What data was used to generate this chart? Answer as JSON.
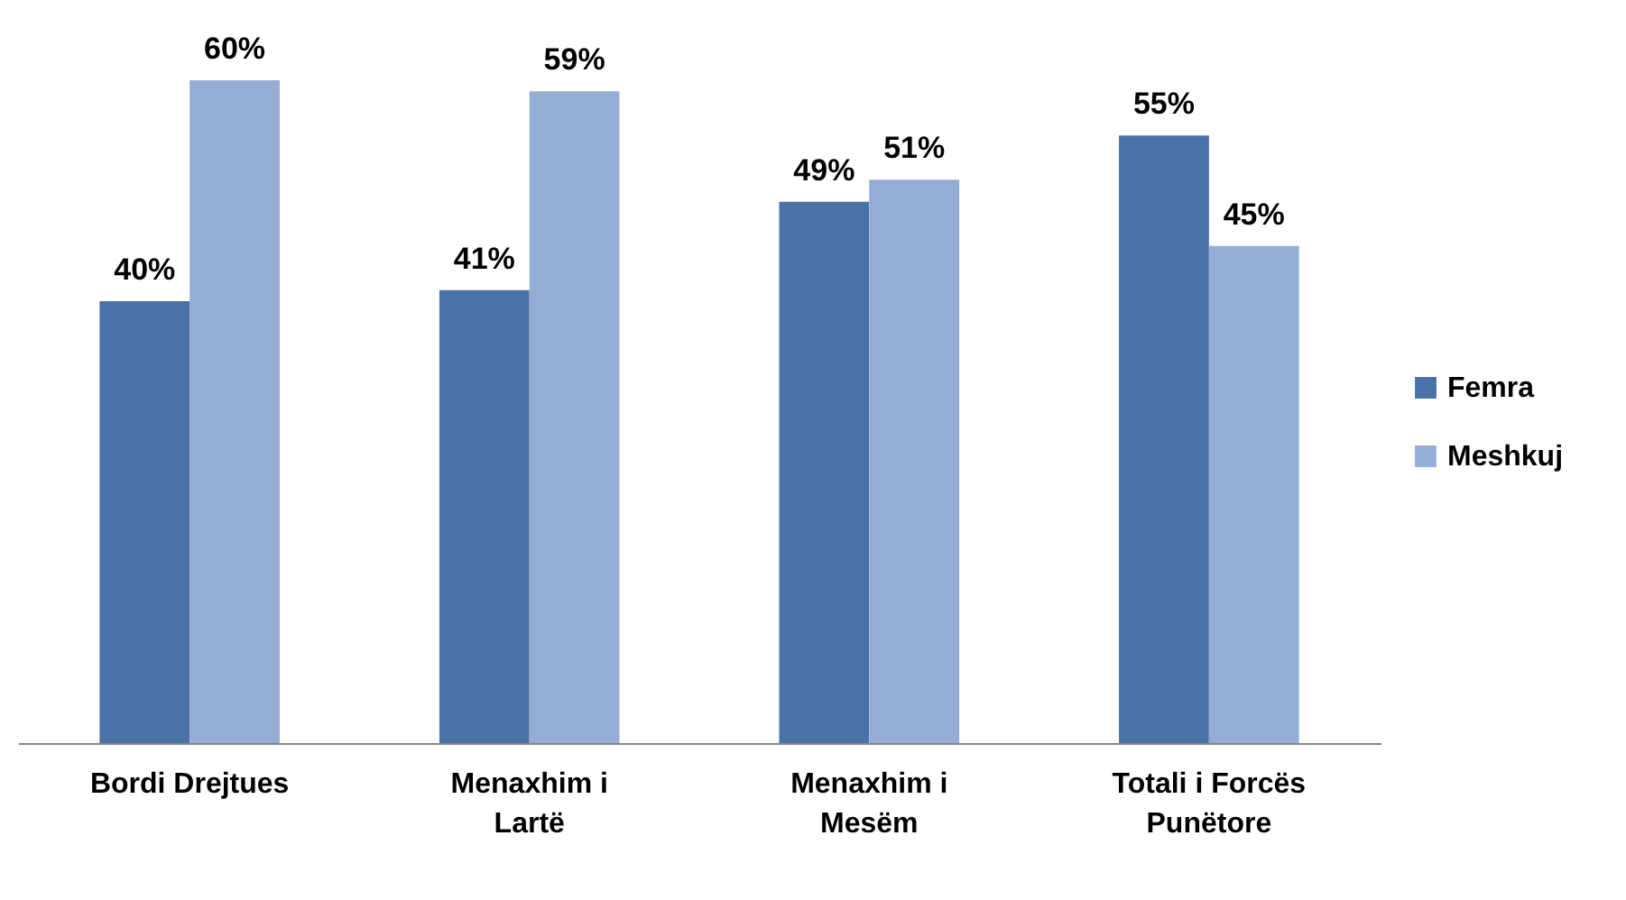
{
  "chart_data": {
    "type": "bar",
    "categories": [
      "Bordi Drejtues",
      "Menaxhim i Lartë",
      "Menaxhim i Mesëm",
      "Totali i Forcës Punëtore"
    ],
    "series": [
      {
        "name": "Femra",
        "color": "#4a72a6",
        "values": [
          40,
          41,
          49,
          55
        ],
        "value_labels": [
          "40%",
          "41%",
          "49%",
          "55%"
        ]
      },
      {
        "name": "Meshkuj",
        "color": "#95acd4",
        "values": [
          60,
          59,
          51,
          45
        ],
        "value_labels": [
          "60%",
          "59%",
          "51%",
          "45%"
        ]
      }
    ],
    "legend": "right"
  }
}
